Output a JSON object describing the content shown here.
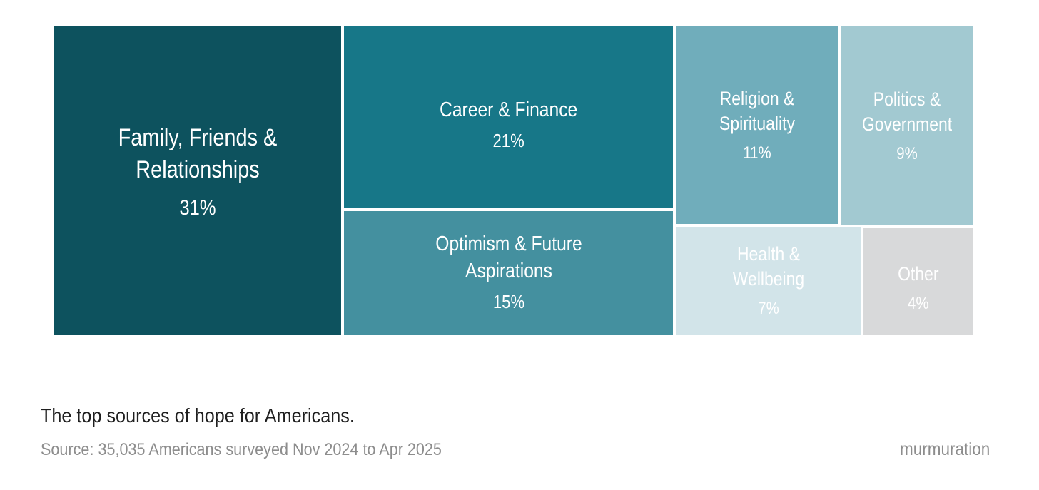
{
  "page": {
    "title": "The top sources of hope for Americans.",
    "source": "Source: 35,035 Americans surveyed Nov 2024 to Apr 2025",
    "brand": "murmuration"
  },
  "colors": {
    "background": "#ffffff",
    "tile_text": "#ffffff",
    "title_text": "#1f1f1f",
    "muted_text": "#8d8d8d"
  },
  "chart_data": {
    "type": "treemap",
    "title": "The top sources of hope for Americans.",
    "source": "Source: 35,035 Americans surveyed Nov 2024 to Apr 2025",
    "unit": "%",
    "legend_position": "none",
    "items": [
      {
        "label": "Family, Friends & Relationships",
        "value": 31,
        "display": "31%",
        "color": "#0d525e"
      },
      {
        "label": "Career & Finance",
        "value": 21,
        "display": "21%",
        "color": "#177788"
      },
      {
        "label": "Optimism & Future Aspirations",
        "value": 15,
        "display": "15%",
        "color": "#44909f"
      },
      {
        "label": "Religion & Spirituality",
        "value": 11,
        "display": "11%",
        "color": "#70adbb"
      },
      {
        "label": "Politics & Government",
        "value": 9,
        "display": "9%",
        "color": "#a2c9d1"
      },
      {
        "label": "Health & Wellbeing",
        "value": 7,
        "display": "7%",
        "color": "#d2e4e9"
      },
      {
        "label": "Other",
        "value": 4,
        "display": "4%",
        "color": "#d8d9da"
      }
    ]
  }
}
